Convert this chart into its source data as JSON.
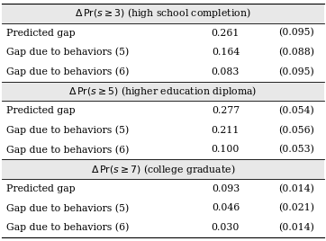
{
  "sections": [
    {
      "header": "$\\Delta\\,\\mathrm{Pr}(s \\geq 3)$ (high school completion)",
      "rows": [
        {
          "label": "Predicted gap",
          "value": "0.261",
          "se": "(0.095)"
        },
        {
          "label": "Gap due to behaviors (5)",
          "value": "0.164",
          "se": "(0.088)"
        },
        {
          "label": "Gap due to behaviors (6)",
          "value": "0.083",
          "se": "(0.095)"
        }
      ]
    },
    {
      "header": "$\\Delta\\,\\mathrm{Pr}(s \\geq 5)$ (higher education diploma)",
      "rows": [
        {
          "label": "Predicted gap",
          "value": "0.277",
          "se": "(0.054)"
        },
        {
          "label": "Gap due to behaviors (5)",
          "value": "0.211",
          "se": "(0.056)"
        },
        {
          "label": "Gap due to behaviors (6)",
          "value": "0.100",
          "se": "(0.053)"
        }
      ]
    },
    {
      "header": "$\\Delta\\,\\mathrm{Pr}(s \\geq 7)$ (college graduate)",
      "rows": [
        {
          "label": "Predicted gap",
          "value": "0.093",
          "se": "(0.014)"
        },
        {
          "label": "Gap due to behaviors (5)",
          "value": "0.046",
          "se": "(0.021)"
        },
        {
          "label": "Gap due to behaviors (6)",
          "value": "0.030",
          "se": "(0.014)"
        }
      ]
    }
  ],
  "bg_color": "#e8e8e8",
  "font_size": 7.8,
  "header_font_size": 7.8,
  "fig_width": 3.62,
  "fig_height": 2.68,
  "dpi": 100
}
